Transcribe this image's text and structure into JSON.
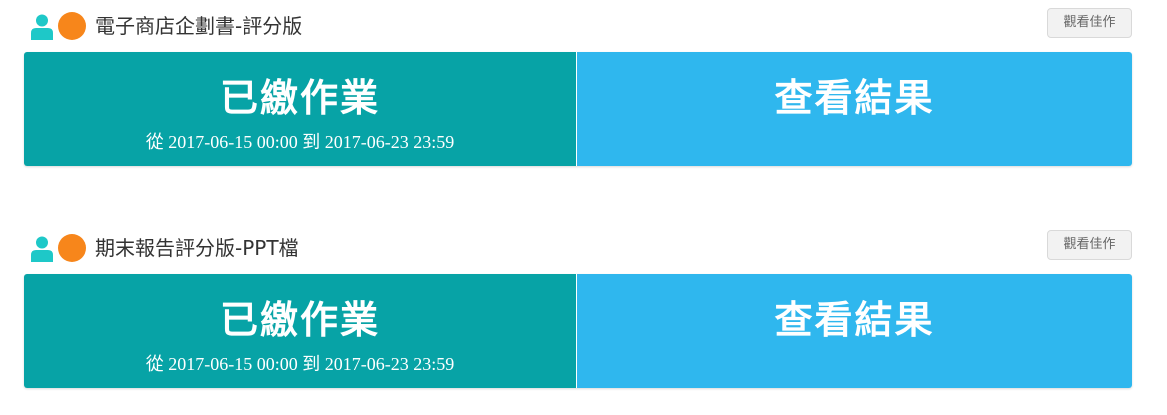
{
  "assignments": [
    {
      "title": "電子商店企劃書-評分版",
      "view_button": "觀看佳作",
      "status_label": "已繳作業",
      "period": "從 2017-06-15 00:00 到 2017-06-23 23:59",
      "results_label": "查看結果"
    },
    {
      "title": "期末報告評分版-PPT檔",
      "view_button": "觀看佳作",
      "status_label": "已繳作業",
      "period": "從 2017-06-15 00:00 到 2017-06-23 23:59",
      "results_label": "查看結果"
    }
  ],
  "icons": {
    "person": "person-icon",
    "dot": "orange-dot-icon"
  },
  "colors": {
    "submitted_bg": "#07a3a6",
    "results_bg": "#2fb7ee",
    "dot": "#f7861b",
    "person": "#1ec8c8"
  }
}
